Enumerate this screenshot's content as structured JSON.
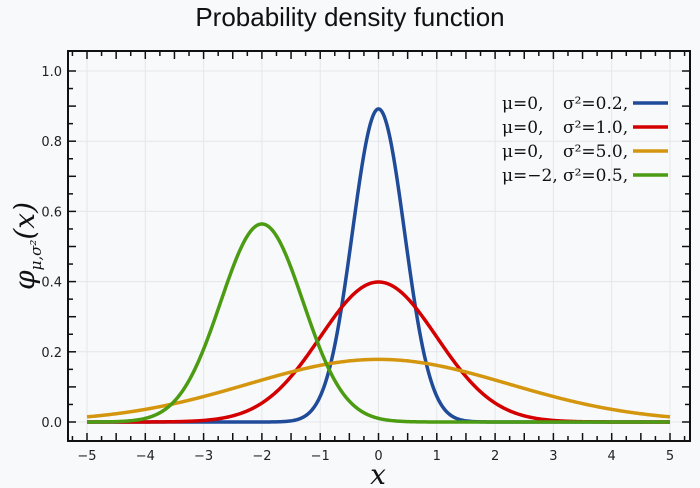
{
  "chart_data": {
    "type": "line",
    "title": "Probability density function",
    "xlabel": "x",
    "ylabel": "φμ,σ²(x)",
    "ylabel_parts": {
      "phi": "φ",
      "sub": "μ,σ²",
      "arg": "(x)"
    },
    "xlim": [
      -5,
      5
    ],
    "ylim": [
      0,
      1.0
    ],
    "xticks": [
      "−5",
      "−4",
      "−3",
      "−2",
      "−1",
      "0",
      "1",
      "2",
      "3",
      "4",
      "5"
    ],
    "yticks": [
      "0.0",
      "0.2",
      "0.4",
      "0.6",
      "0.8",
      "1.0"
    ],
    "grid": true,
    "legend_position": "top-right",
    "series": [
      {
        "name": "μ=0,   σ²=0.2,",
        "mu_label": "μ=0,",
        "var_label": "σ²=0.2,",
        "mu": 0,
        "variance": 0.2,
        "color": "#1f4b99"
      },
      {
        "name": "μ=0,   σ²=1.0,",
        "mu_label": "μ=0,",
        "var_label": "σ²=1.0,",
        "mu": 0,
        "variance": 1.0,
        "color": "#d40000"
      },
      {
        "name": "μ=0,   σ²=5.0,",
        "mu_label": "μ=0,",
        "var_label": "σ²=5.0,",
        "mu": 0,
        "variance": 5.0,
        "color": "#d4960f"
      },
      {
        "name": "μ=−2, σ²=0.5,",
        "mu_label": "μ=−2,",
        "var_label": "σ²=0.5,",
        "mu": -2,
        "variance": 0.5,
        "color": "#4b9c12"
      }
    ]
  }
}
